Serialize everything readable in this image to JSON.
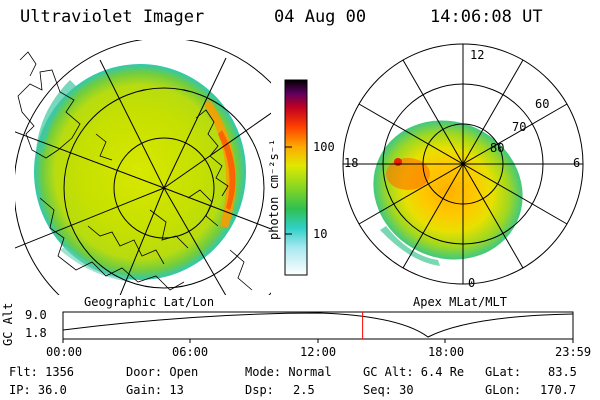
{
  "header": {
    "instrument": "Ultraviolet Imager",
    "date": "04 Aug 00",
    "time": "14:06:08 UT"
  },
  "left_panel": {
    "caption": "Geographic Lat/Lon"
  },
  "right_panel": {
    "caption": "Apex MLat/MLT",
    "mlt_labels": {
      "top": "12",
      "left": "18",
      "right": "6",
      "bottom": "0"
    },
    "lat_labels": [
      "60",
      "70",
      "80"
    ]
  },
  "colorbar": {
    "unit_label": "photon cm⁻²s⁻¹",
    "ticks": [
      {
        "value": 100,
        "label": "100"
      },
      {
        "value": 10,
        "label": "10"
      }
    ],
    "range": [
      2.5,
      400
    ]
  },
  "altitude_plot": {
    "ylabel": "GC Alt",
    "yticks": [
      "9.0",
      "1.8"
    ],
    "xticks": [
      "00:00",
      "06:00",
      "12:00",
      "18:00",
      "23:59"
    ],
    "current_time_hours": 14.1
  },
  "footer": {
    "flt": "Flt: 1356",
    "ip": "IP: 36.0",
    "door": "Door: Open",
    "gain": "Gain: 13",
    "mode": "Mode: Normal",
    "dsp_label": "Dsp:",
    "dsp_value": "2.5",
    "gc_alt": "GC Alt: 6.4 Re",
    "seq": "Seq: 30",
    "glat_label": "GLat:",
    "glat_value": "83.5",
    "glon_label": "GLon:",
    "glon_value": "170.7"
  },
  "colors": {
    "accent": "#ff0000",
    "scale": [
      "#ffffff",
      "#40d0d0",
      "#30c040",
      "#c8e000",
      "#ffa000",
      "#ff2000",
      "#b00030",
      "#000000"
    ]
  }
}
